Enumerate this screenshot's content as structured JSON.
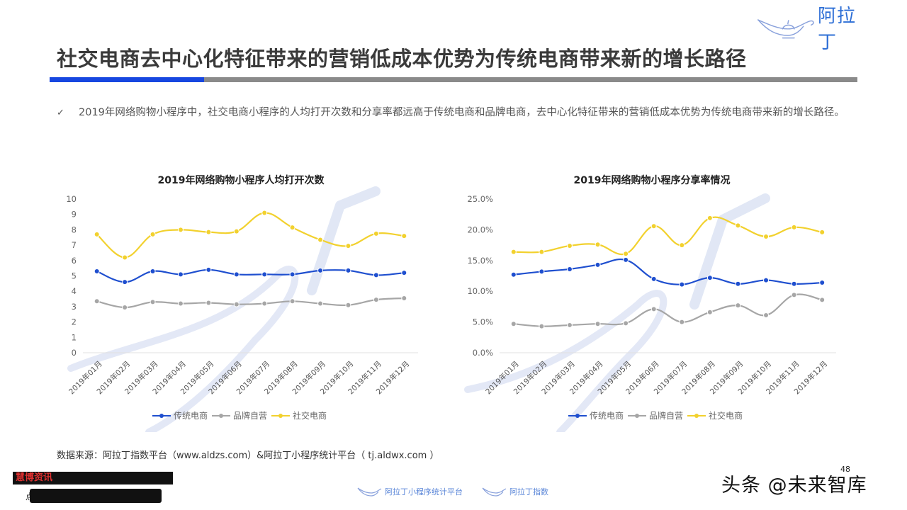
{
  "header": {
    "logo_text": "阿拉丁",
    "title": "社交电商去中心化特征带来的营销低成本优势为传统电商带来新的增长路径",
    "colors": {
      "accent_blue": "#1747e0",
      "bar_gray": "#8a8a8a"
    }
  },
  "summary": {
    "check_icon": "✓",
    "text": "2019年网络购物小程序中，社交电商小程序的人均打开次数和分享率都远高于传统电商和品牌电商，去中心化特征带来的营销低成本优势为传统电商带来新的增长路径。"
  },
  "legend": {
    "items": [
      {
        "label": "传统电商",
        "color": "#1f4fcf"
      },
      {
        "label": "品牌自营",
        "color": "#a6a6a6"
      },
      {
        "label": "社交电商",
        "color": "#f2d12e"
      }
    ]
  },
  "chart_data": [
    {
      "type": "line",
      "title": "2019年网络购物小程序人均打开次数",
      "xlabel": "",
      "ylabel": "",
      "ylim": [
        0,
        10
      ],
      "yticks": [
        "0",
        "1",
        "2",
        "3",
        "4",
        "5",
        "6",
        "7",
        "8",
        "9",
        "10"
      ],
      "categories": [
        "2019年01月",
        "2019年02月",
        "2019年03月",
        "2019年04月",
        "2019年05月",
        "2019年06月",
        "2019年07月",
        "2019年08月",
        "2019年09月",
        "2019年10月",
        "2019年11月",
        "2019年12月"
      ],
      "series": [
        {
          "name": "传统电商",
          "color": "#1f4fcf",
          "values": [
            5.3,
            4.6,
            5.3,
            5.1,
            5.4,
            5.1,
            5.1,
            5.1,
            5.35,
            5.35,
            5.05,
            5.2
          ]
        },
        {
          "name": "品牌自营",
          "color": "#a6a6a6",
          "values": [
            3.35,
            2.95,
            3.3,
            3.2,
            3.25,
            3.15,
            3.2,
            3.35,
            3.2,
            3.1,
            3.45,
            3.55
          ]
        },
        {
          "name": "社交电商",
          "color": "#f2d12e",
          "values": [
            7.7,
            6.2,
            7.7,
            8.0,
            7.85,
            7.9,
            9.1,
            8.15,
            7.35,
            6.95,
            7.75,
            7.6
          ]
        }
      ],
      "legend_position": "bottom",
      "grid": false
    },
    {
      "type": "line",
      "title": "2019年网络购物小程序分享率情况",
      "xlabel": "",
      "ylabel": "",
      "ylim": [
        0,
        25
      ],
      "yticks": [
        "0.0%",
        "5.0%",
        "10.0%",
        "15.0%",
        "20.0%",
        "25.0%"
      ],
      "categories": [
        "2019年01月",
        "2019年02月",
        "2019年03月",
        "2019年04月",
        "2019年05月",
        "2019年06月",
        "2019年07月",
        "2019年08月",
        "2019年09月",
        "2019年10月",
        "2019年11月",
        "2019年12月"
      ],
      "series": [
        {
          "name": "传统电商",
          "color": "#1f4fcf",
          "values": [
            12.7,
            13.2,
            13.6,
            14.3,
            15.1,
            12.0,
            11.1,
            12.2,
            11.2,
            11.8,
            11.2,
            11.4
          ]
        },
        {
          "name": "品牌自营",
          "color": "#a6a6a6",
          "values": [
            4.7,
            4.3,
            4.5,
            4.7,
            4.8,
            7.1,
            5.0,
            6.6,
            7.7,
            6.1,
            9.4,
            8.6
          ]
        },
        {
          "name": "社交电商",
          "color": "#f2d12e",
          "values": [
            16.4,
            16.4,
            17.4,
            17.6,
            16.1,
            20.6,
            17.5,
            21.9,
            20.7,
            18.9,
            20.4,
            19.6
          ]
        }
      ],
      "legend_position": "bottom",
      "grid": false
    }
  ],
  "footer": {
    "source": "数据来源：阿拉丁指数平台（www.aldzs.com）&阿拉丁小程序统计平台（ tj.aldwx.com ）",
    "redacted_tag": "慧博资讯",
    "redacted_prefix": "点",
    "logo1_text": "阿拉丁小程序统计平台",
    "logo2_text": "阿拉丁指数",
    "watermark": "头条 @未来智库",
    "page_number": "48"
  }
}
